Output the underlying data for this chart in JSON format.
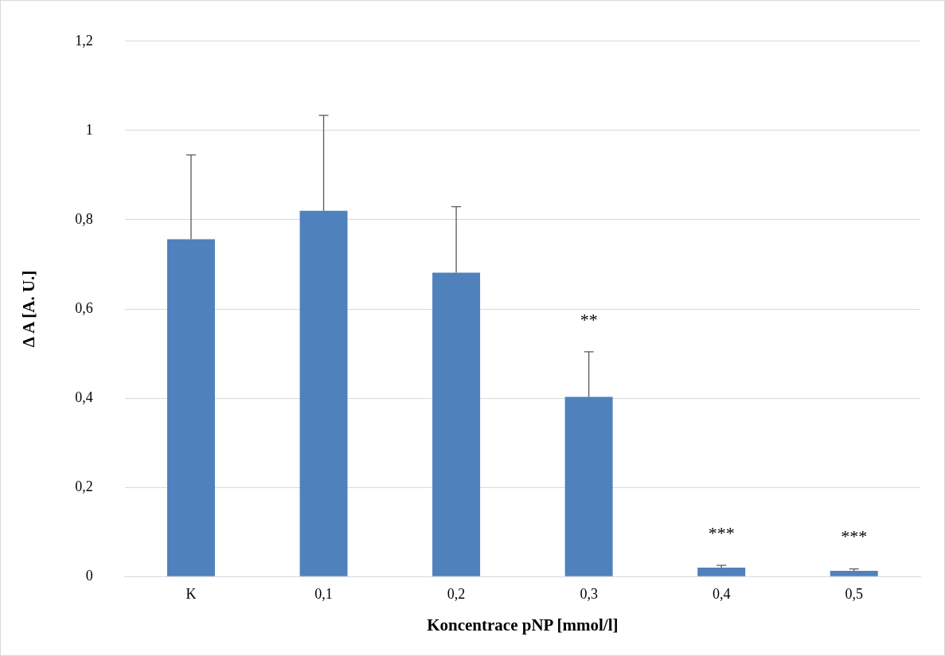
{
  "chart_data": {
    "type": "bar",
    "xlabel": "Koncentrace pNP [mmol/l]",
    "ylabel": "Δ A [A. U.]",
    "categories": [
      "K",
      "0,1",
      "0,2",
      "0,3",
      "0,4",
      "0,5"
    ],
    "values": [
      0.756,
      0.82,
      0.681,
      0.403,
      0.02,
      0.013
    ],
    "errors": [
      [
        0.756,
        0.945
      ],
      [
        0.82,
        1.034
      ],
      [
        0.681,
        0.829
      ],
      [
        0.403,
        0.504
      ],
      [
        0.02,
        0.025
      ],
      [
        0.013,
        0.017
      ]
    ],
    "color": "#4f81bd",
    "ylim": [
      0,
      1.2
    ],
    "yticks": [
      0,
      {
        "value": 0.2,
        "label": "0,2"
      },
      {
        "value": 0.4,
        "label": "0,4"
      },
      {
        "value": 0.6,
        "label": "0,6"
      },
      {
        "value": 0.8,
        "label": "0,8"
      },
      1,
      {
        "value": 1.2,
        "label": "1,2"
      }
    ],
    "grid": "y",
    "legend": false,
    "annotations": [
      {
        "text": "**",
        "x": "0,3",
        "y": 0.504
      },
      {
        "text": "***",
        "x": "0,4",
        "y": 0.025
      },
      {
        "text": "***",
        "x": "0,5",
        "y": 0.017
      }
    ]
  }
}
